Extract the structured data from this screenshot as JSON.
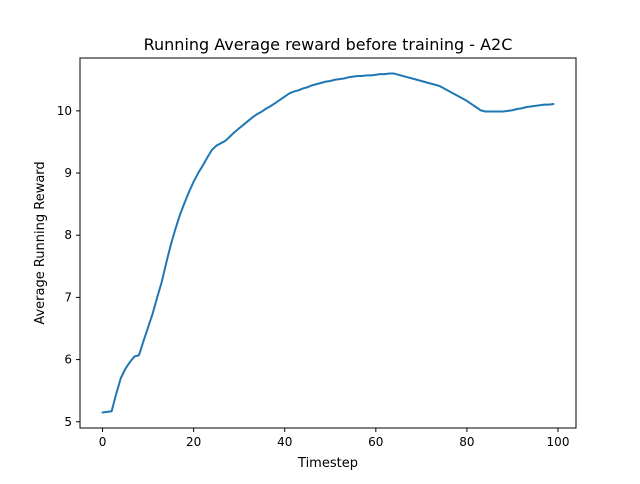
{
  "chart_data": {
    "type": "line",
    "title": "Running Average reward before training - A2C",
    "xlabel": "Timestep",
    "ylabel": "Average Running Reward",
    "xlim": [
      -4.95,
      103.95
    ],
    "ylim": [
      4.9,
      10.85
    ],
    "x_ticks": [
      0,
      20,
      40,
      60,
      80,
      100
    ],
    "y_ticks": [
      5,
      6,
      7,
      8,
      9,
      10
    ],
    "grid": false,
    "legend": "none",
    "series": [
      {
        "color": "#1f77b4",
        "x": [
          0,
          1,
          2,
          3,
          4,
          5,
          6,
          7,
          8,
          9,
          10,
          11,
          12,
          13,
          14,
          15,
          16,
          17,
          18,
          19,
          20,
          21,
          22,
          23,
          24,
          25,
          26,
          27,
          28,
          29,
          30,
          31,
          32,
          33,
          34,
          35,
          36,
          37,
          38,
          39,
          40,
          41,
          42,
          43,
          44,
          45,
          46,
          47,
          48,
          49,
          50,
          51,
          52,
          53,
          54,
          55,
          56,
          57,
          58,
          59,
          60,
          61,
          62,
          63,
          64,
          65,
          66,
          67,
          68,
          69,
          70,
          71,
          72,
          73,
          74,
          75,
          76,
          77,
          78,
          79,
          80,
          81,
          82,
          83,
          84,
          85,
          86,
          87,
          88,
          89,
          90,
          91,
          92,
          93,
          94,
          95,
          96,
          97,
          98,
          99
        ],
        "values": [
          5.15,
          5.16,
          5.17,
          5.45,
          5.7,
          5.85,
          5.96,
          6.05,
          6.07,
          6.3,
          6.52,
          6.74,
          7.0,
          7.25,
          7.56,
          7.85,
          8.1,
          8.33,
          8.52,
          8.7,
          8.86,
          9.0,
          9.12,
          9.25,
          9.37,
          9.44,
          9.48,
          9.52,
          9.59,
          9.66,
          9.72,
          9.78,
          9.84,
          9.9,
          9.95,
          9.99,
          10.04,
          10.08,
          10.13,
          10.18,
          10.23,
          10.28,
          10.31,
          10.33,
          10.36,
          10.38,
          10.41,
          10.43,
          10.45,
          10.47,
          10.48,
          10.5,
          10.51,
          10.52,
          10.54,
          10.55,
          10.56,
          10.56,
          10.57,
          10.57,
          10.58,
          10.59,
          10.59,
          10.6,
          10.6,
          10.58,
          10.56,
          10.54,
          10.52,
          10.5,
          10.48,
          10.46,
          10.44,
          10.42,
          10.4,
          10.36,
          10.32,
          10.28,
          10.24,
          10.2,
          10.16,
          10.11,
          10.06,
          10.01,
          9.99,
          9.99,
          9.99,
          9.99,
          9.99,
          10.0,
          10.01,
          10.03,
          10.04,
          10.06,
          10.07,
          10.08,
          10.09,
          10.1,
          10.1,
          10.11
        ]
      }
    ]
  }
}
